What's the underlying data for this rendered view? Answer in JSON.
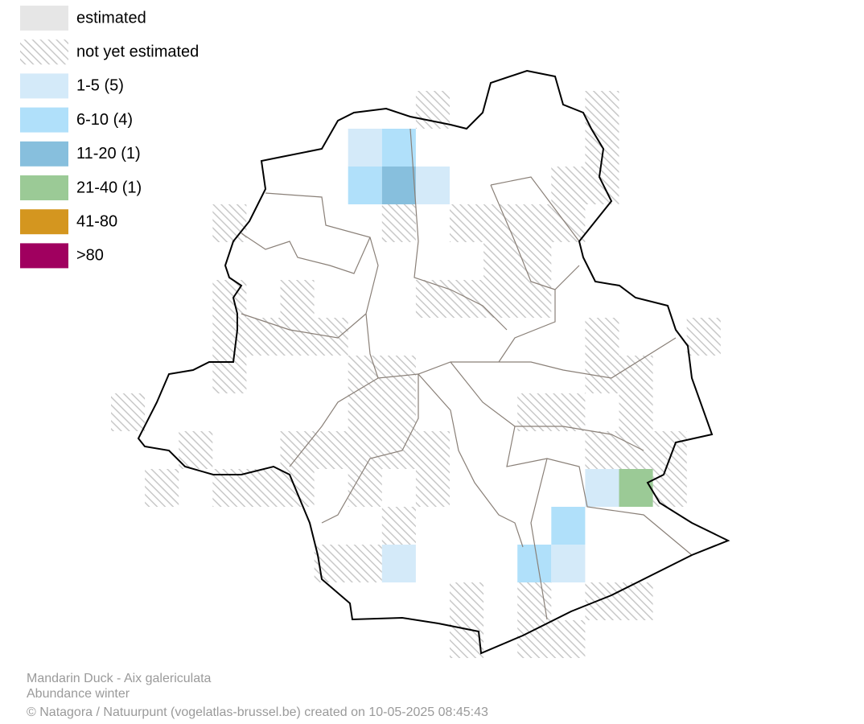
{
  "legend": [
    {
      "label": "estimated",
      "color": "#e6e6e6"
    },
    {
      "label": "not yet estimated",
      "color": "hatched"
    },
    {
      "label": "1-5 (5)",
      "color": "#d4eaf9"
    },
    {
      "label": "6-10 (4)",
      "color": "#b0e0fa"
    },
    {
      "label": "11-20 (1)",
      "color": "#87bfdd"
    },
    {
      "label": "21-40 (1)",
      "color": "#9bca96"
    },
    {
      "label": "41-80",
      "color": "#d4961f"
    },
    {
      "label": ">80",
      "color": "#a0005f"
    }
  ],
  "footer": {
    "species": "Mandarin Duck - Aix galericulata",
    "subtitle": "Abundance winter",
    "credit": "© Natagora / Natuurpunt (vogelatlas-brussel.be) created on 10-05-2025 08:45:43"
  }
}
